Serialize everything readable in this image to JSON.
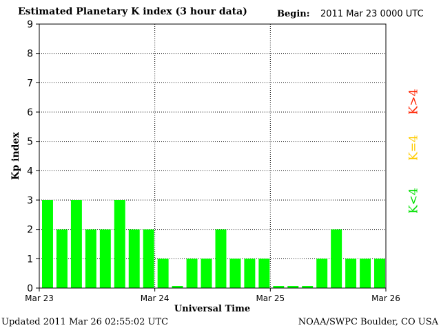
{
  "header": {
    "title": "Estimated Planetary K index (3 hour data)",
    "begin_label": "Begin:",
    "begin_value": "2011 Mar 23 0000 UTC"
  },
  "footer": {
    "updated": "Updated 2011 Mar 26 02:55:02 UTC",
    "credit": "NOAA/SWPC Boulder, CO USA"
  },
  "legend": {
    "items": [
      {
        "label": "K<4",
        "color": "#00e000"
      },
      {
        "label": "K=4",
        "color": "#ffcc00"
      },
      {
        "label": "K>4",
        "color": "#ff2200"
      }
    ]
  },
  "colors": {
    "bar": "#00ff00"
  },
  "chart_data": {
    "type": "bar",
    "xlabel": "Universal Time",
    "ylabel": "Kp index",
    "ylim": [
      0,
      9
    ],
    "yticks": [
      0,
      1,
      2,
      3,
      4,
      5,
      6,
      7,
      8,
      9
    ],
    "xticks": [
      "Mar 23",
      "Mar 24",
      "Mar 25",
      "Mar 26"
    ],
    "grid": true,
    "values": [
      3,
      2,
      3,
      2,
      2,
      3,
      2,
      2,
      1,
      0.07,
      1,
      1,
      2,
      1,
      1,
      1,
      0.07,
      0.07,
      0.07,
      1,
      2,
      1,
      1,
      1
    ]
  }
}
